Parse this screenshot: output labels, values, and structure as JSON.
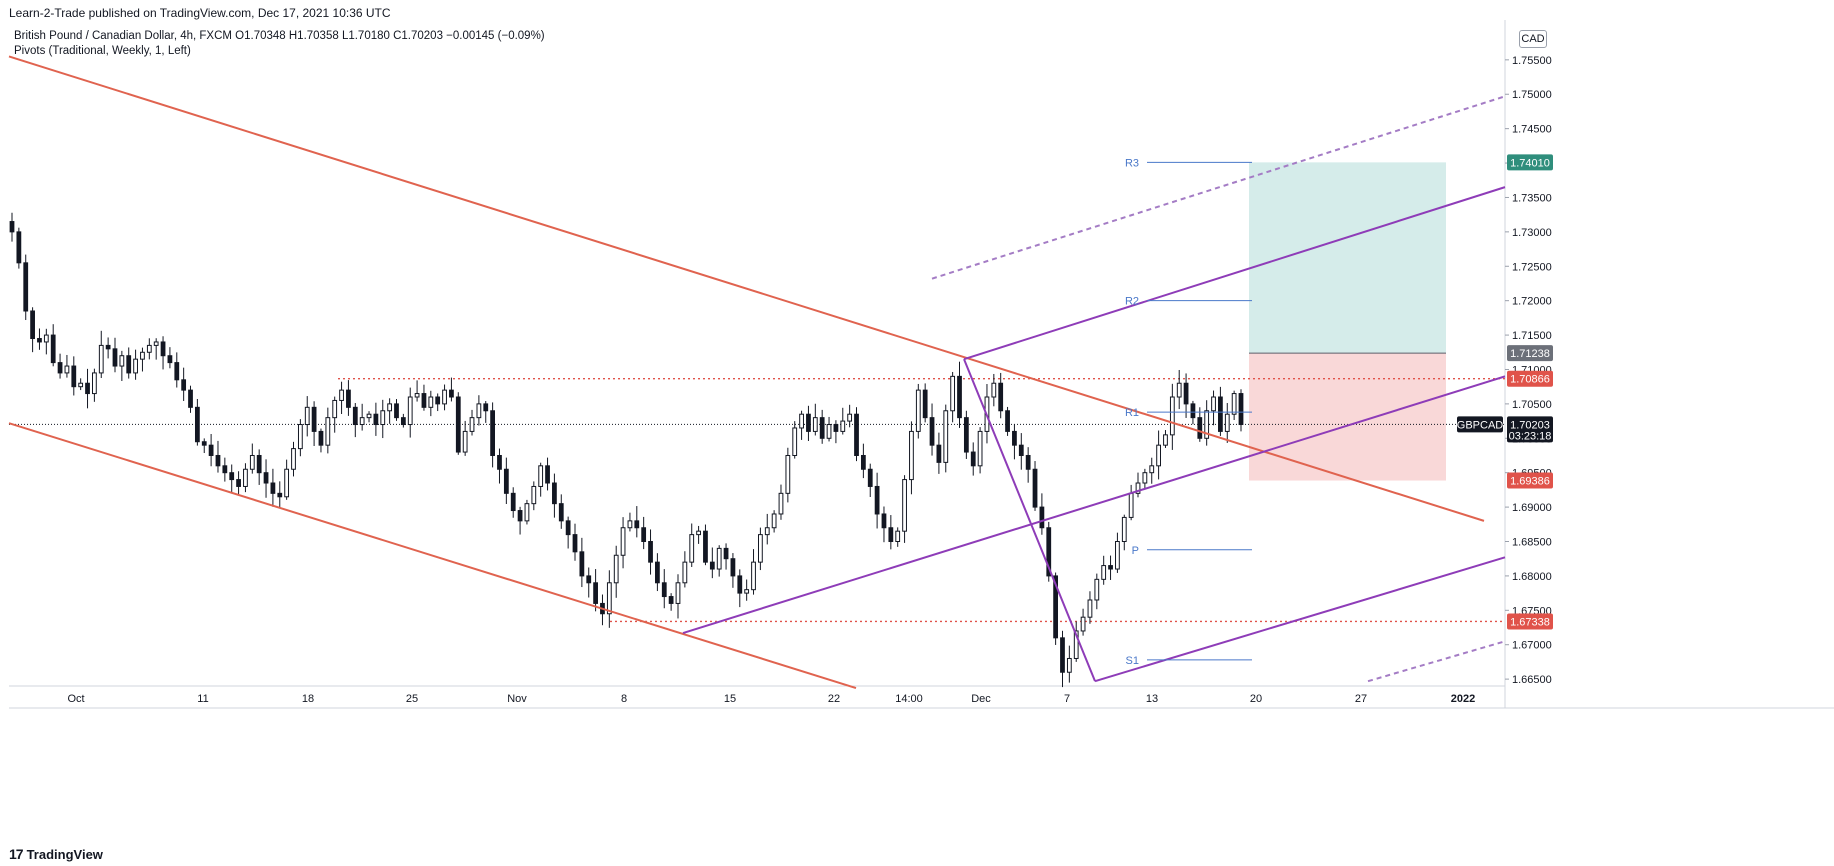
{
  "header": {
    "published": "Learn-2-Trade published on TradingView.com, Dec 17, 2021 10:36 UTC",
    "symbol_line": "British Pound / Canadian Dollar, 4h, FXCM  O1.70348  H1.70358  L1.70180  C1.70203  −0.00145 (−0.09%)",
    "indicator_line": "Pivots (Traditional, Weekly, 1, Left)",
    "currency": "CAD"
  },
  "footer": {
    "brand": "TradingView",
    "logo_glyph": "17"
  },
  "colors": {
    "channel": "#e0634f",
    "purple": "#8e3cb8",
    "pivot": "#4a78c9",
    "long_target": "#b9dfdc",
    "long_stop": "#f6c7c7",
    "up_candle": "#ffffff",
    "down_candle": "#131722",
    "tag_green": "#2f8e7c",
    "tag_red": "#e0534a",
    "tag_gray": "#6c7079",
    "tag_dark": "#131722"
  },
  "chart_data": {
    "type": "candlestick",
    "symbol": "GBPCAD",
    "timeframe": "4h",
    "x_labels": [
      "Oct",
      "11",
      "18",
      "25",
      "Nov",
      "8",
      "15",
      "22",
      "14:00",
      "Dec",
      "7",
      "13",
      "20",
      "27",
      "2022"
    ],
    "y_ticks": [
      "1.66500",
      "1.67000",
      "1.67500",
      "1.68000",
      "1.68500",
      "1.69000",
      "1.69500",
      "1.70000",
      "1.70500",
      "1.71000",
      "1.71500",
      "1.72000",
      "1.72500",
      "1.73000",
      "1.73500",
      "1.74000",
      "1.74500",
      "1.75000",
      "1.75500"
    ],
    "ylim": [
      1.664,
      1.7605
    ],
    "closes": [
      1.73,
      1.7255,
      1.7185,
      1.7145,
      1.714,
      1.715,
      1.711,
      1.7095,
      1.7105,
      1.7075,
      1.708,
      1.7065,
      1.7095,
      1.7135,
      1.713,
      1.7105,
      1.712,
      1.7095,
      1.7115,
      1.7125,
      1.7135,
      1.714,
      1.712,
      1.711,
      1.7085,
      1.707,
      1.7045,
      1.6995,
      1.699,
      1.6975,
      1.696,
      1.695,
      1.694,
      1.693,
      1.6955,
      1.6975,
      1.695,
      1.6935,
      1.692,
      1.6915,
      1.6955,
      1.6985,
      1.702,
      1.7045,
      1.701,
      1.699,
      1.703,
      1.7055,
      1.707,
      1.7045,
      1.702,
      1.703,
      1.7035,
      1.702,
      1.704,
      1.705,
      1.703,
      1.702,
      1.706,
      1.7065,
      1.7045,
      1.706,
      1.705,
      1.707,
      1.706,
      1.698,
      1.701,
      1.703,
      1.705,
      1.704,
      1.6975,
      1.6955,
      1.692,
      1.6895,
      1.688,
      1.6905,
      1.693,
      1.696,
      1.6935,
      1.6905,
      1.688,
      1.686,
      1.6835,
      1.68,
      1.679,
      1.676,
      1.6745,
      1.679,
      1.683,
      1.687,
      1.688,
      1.687,
      1.685,
      1.682,
      1.679,
      1.677,
      1.676,
      1.679,
      1.682,
      1.686,
      1.6865,
      1.682,
      1.681,
      1.684,
      1.6825,
      1.68,
      1.6775,
      1.678,
      1.682,
      1.686,
      1.687,
      1.689,
      1.692,
      1.6975,
      1.7015,
      1.7035,
      1.701,
      1.703,
      1.7,
      1.702,
      1.701,
      1.7025,
      1.7035,
      1.6975,
      1.6955,
      1.693,
      1.689,
      1.687,
      1.685,
      1.6865,
      1.694,
      1.701,
      1.707,
      1.703,
      1.699,
      1.6965,
      1.704,
      1.709,
      1.703,
      1.698,
      1.696,
      1.701,
      1.706,
      1.708,
      1.704,
      1.701,
      1.699,
      1.6975,
      1.6955,
      1.69,
      1.687,
      1.68,
      1.671,
      1.666,
      1.668,
      1.672,
      1.674,
      1.6765,
      1.6795,
      1.6815,
      1.681,
      1.685,
      1.6885,
      1.692,
      1.6935,
      1.695,
      1.696,
      1.699,
      1.7005,
      1.706,
      1.708,
      1.705,
      1.703,
      1.7,
      1.704,
      1.706,
      1.701,
      1.7035,
      1.7065,
      1.702
    ],
    "range_label": "Oct 2021 – Dec 17, 2021",
    "last_price": 1.70203,
    "countdown": "03:23:18",
    "pivots": [
      {
        "label": "R3",
        "value": 1.7401
      },
      {
        "label": "R2",
        "value": 1.72
      },
      {
        "label": "R1",
        "value": 1.7038
      },
      {
        "label": "P",
        "value": 1.6838
      },
      {
        "label": "S1",
        "value": 1.6678
      }
    ],
    "price_tags": [
      {
        "value": 1.7401,
        "text": "1.74010",
        "color": "green"
      },
      {
        "value": 1.71238,
        "text": "1.71238",
        "color": "gray"
      },
      {
        "value": 1.70866,
        "text": "1.70866",
        "color": "red"
      },
      {
        "value": 1.69386,
        "text": "1.69386",
        "color": "red"
      },
      {
        "value": 1.67338,
        "text": "1.67338",
        "color": "red"
      }
    ],
    "symbol_tag": "GBPCAD",
    "last_price_text": "1.70203",
    "long_position": {
      "entry": 1.71238,
      "target": 1.7401,
      "stop": 1.69386
    },
    "horizontal_levels": [
      1.70866,
      1.67338
    ]
  }
}
